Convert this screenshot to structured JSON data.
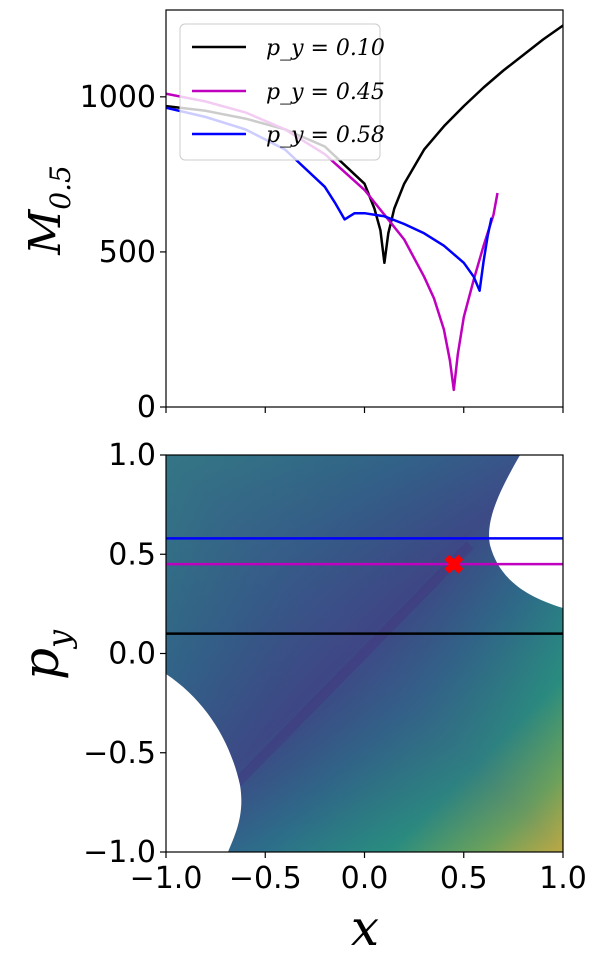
{
  "chart_data": [
    {
      "type": "line",
      "ylabel": "M_0.5",
      "ylabel_main": "M",
      "ylabel_sub": "0.5",
      "xlim": [
        -1.0,
        1.0
      ],
      "ylim": [
        0,
        1280
      ],
      "yticks": [
        0,
        500,
        1000
      ],
      "ytick_labels": [
        "0",
        "500",
        "1000"
      ],
      "xticks": [
        -1.0,
        -0.5,
        0.0,
        0.5,
        1.0
      ],
      "legend_position": "upper-left",
      "legend_entries": [
        "p_y = 0.10",
        "p_y = 0.45",
        "p_y = 0.58"
      ],
      "series": [
        {
          "name": "p_y = 0.10",
          "color": "#000000",
          "x": [
            -1.0,
            -0.8,
            -0.6,
            -0.4,
            -0.2,
            0.0,
            0.05,
            0.08,
            0.1,
            0.12,
            0.15,
            0.2,
            0.3,
            0.4,
            0.5,
            0.6,
            0.7,
            0.8,
            0.9,
            1.0
          ],
          "y": [
            970,
            955,
            930,
            895,
            840,
            720,
            640,
            570,
            465,
            560,
            640,
            720,
            830,
            905,
            970,
            1030,
            1085,
            1135,
            1185,
            1230
          ]
        },
        {
          "name": "p_y = 0.45",
          "color": "#bf00bf",
          "x": [
            -1.0,
            -0.8,
            -0.6,
            -0.4,
            -0.2,
            0.0,
            0.1,
            0.2,
            0.3,
            0.35,
            0.4,
            0.43,
            0.45,
            0.47,
            0.5,
            0.55,
            0.6,
            0.65,
            0.67
          ],
          "y": [
            1010,
            985,
            950,
            895,
            815,
            700,
            620,
            540,
            420,
            350,
            250,
            150,
            55,
            170,
            290,
            410,
            520,
            620,
            690
          ]
        },
        {
          "name": "p_y = 0.58",
          "color": "#0000ff",
          "x": [
            -1.0,
            -0.8,
            -0.6,
            -0.4,
            -0.2,
            -0.15,
            -0.1,
            -0.05,
            0.0,
            0.1,
            0.2,
            0.3,
            0.4,
            0.5,
            0.55,
            0.58,
            0.6,
            0.62,
            0.64
          ],
          "y": [
            965,
            935,
            895,
            830,
            710,
            660,
            605,
            625,
            625,
            615,
            590,
            560,
            520,
            465,
            420,
            375,
            470,
            550,
            610
          ]
        }
      ]
    },
    {
      "type": "heatmap",
      "xlabel": "x",
      "ylabel": "p_y",
      "ylabel_main": "p",
      "ylabel_sub": "y",
      "xlim": [
        -1.0,
        1.0
      ],
      "ylim": [
        -1.0,
        1.0
      ],
      "xticks": [
        -1.0,
        -0.5,
        0.0,
        0.5,
        1.0
      ],
      "xtick_labels": [
        "−1.0",
        "−0.5",
        "0.0",
        "0.5",
        "1.0"
      ],
      "yticks": [
        -1.0,
        -0.5,
        0.0,
        0.5,
        1.0
      ],
      "ytick_labels": [
        "−1.0",
        "−0.5",
        "0.0",
        "0.5",
        "1.0"
      ],
      "colormap": "viridis",
      "hlines": [
        {
          "y": 0.58,
          "color": "#0000ff"
        },
        {
          "y": 0.45,
          "color": "#bf00bf"
        },
        {
          "y": 0.1,
          "color": "#000000"
        }
      ],
      "marker": {
        "x": 0.45,
        "y": 0.45,
        "symbol": "X",
        "color": "#ff0000"
      }
    }
  ]
}
